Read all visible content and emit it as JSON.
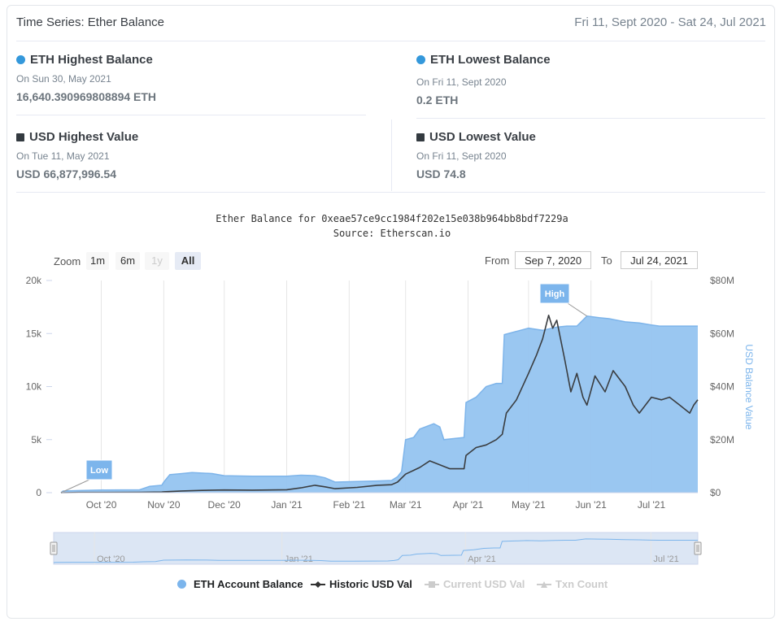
{
  "header": {
    "title": "Time Series: Ether Balance",
    "range": "Fri 11, Sept 2020 - Sat 24, Jul 2021"
  },
  "stats": {
    "eth_high": {
      "title": "ETH Highest Balance",
      "date": "On Sun 30, May 2021",
      "value": "16,640.390969808894 ETH"
    },
    "eth_low": {
      "title": "ETH Lowest Balance",
      "date": "On Fri 11, Sept 2020",
      "value": "0.2 ETH"
    },
    "usd_high": {
      "title": "USD Highest Value",
      "date": "On Tue 11, May 2021",
      "value": "USD 66,877,996.54"
    },
    "usd_low": {
      "title": "USD Lowest Value",
      "date": "On Fri 11, Sept 2020",
      "value": "USD 74.8"
    }
  },
  "colors": {
    "eth_area": "#95c4f0",
    "eth_line": "#7db4ea",
    "usd_line": "#3a3d40",
    "accent": "#3498db",
    "flag": "#7cb5ec"
  },
  "controls": {
    "zoom_label": "Zoom",
    "zoom_options": [
      "1m",
      "6m",
      "1y",
      "All"
    ],
    "zoom_selected": "All",
    "from_label": "From",
    "from_value": "Sep 7, 2020",
    "to_label": "To",
    "to_value": "Jul 24, 2021"
  },
  "chart_data": {
    "type": "area",
    "title": "Ether Balance for 0xeae57ce9cc1984f202e15e038b964bb8bdf7229a",
    "subtitle": "Source: Etherscan.io",
    "x_ticks": [
      "Oct '20",
      "Nov '20",
      "Dec '20",
      "Jan '21",
      "Feb '21",
      "Mar '21",
      "Apr '21",
      "May '21",
      "Jun '21",
      "Jul '21"
    ],
    "x_range": [
      "2020-09-11",
      "2021-07-24"
    ],
    "y_left": {
      "ticks": [
        "0",
        "5k",
        "10k",
        "15k",
        "20k"
      ],
      "range": [
        0,
        20000
      ]
    },
    "y_right": {
      "label": "USD Balance Value",
      "ticks": [
        "$0",
        "$20M",
        "$40M",
        "$60M",
        "$80M"
      ],
      "range": [
        0,
        80000000
      ]
    },
    "flags": [
      {
        "label": "Low",
        "date": "2020-09-11"
      },
      {
        "label": "High",
        "date": "2021-05-30"
      }
    ],
    "navigator_ticks": [
      "Oct '20",
      "Jan '21",
      "Apr '21",
      "Jul '21"
    ],
    "series": [
      {
        "name": "ETH Account Balance",
        "axis": "left",
        "type": "area",
        "points": [
          [
            "2020-09-11",
            0
          ],
          [
            "2020-09-12",
            150
          ],
          [
            "2020-09-20",
            200
          ],
          [
            "2020-10-01",
            250
          ],
          [
            "2020-10-20",
            270
          ],
          [
            "2020-10-25",
            600
          ],
          [
            "2020-10-31",
            700
          ],
          [
            "2020-11-01",
            1000
          ],
          [
            "2020-11-04",
            1700
          ],
          [
            "2020-11-10",
            1800
          ],
          [
            "2020-11-15",
            1900
          ],
          [
            "2020-11-25",
            1800
          ],
          [
            "2020-12-01",
            1600
          ],
          [
            "2020-12-15",
            1550
          ],
          [
            "2021-01-01",
            1550
          ],
          [
            "2021-01-08",
            1650
          ],
          [
            "2021-01-15",
            1600
          ],
          [
            "2021-01-20",
            1400
          ],
          [
            "2021-01-25",
            1000
          ],
          [
            "2021-02-05",
            1050
          ],
          [
            "2021-02-15",
            1100
          ],
          [
            "2021-02-22",
            1150
          ],
          [
            "2021-02-25",
            1500
          ],
          [
            "2021-02-27",
            2000
          ],
          [
            "2021-03-01",
            5000
          ],
          [
            "2021-03-05",
            5200
          ],
          [
            "2021-03-08",
            6000
          ],
          [
            "2021-03-15",
            6500
          ],
          [
            "2021-03-18",
            6200
          ],
          [
            "2021-03-20",
            5000
          ],
          [
            "2021-03-30",
            5200
          ],
          [
            "2021-03-31",
            8500
          ],
          [
            "2021-04-05",
            9000
          ],
          [
            "2021-04-10",
            10000
          ],
          [
            "2021-04-15",
            10300
          ],
          [
            "2021-04-18",
            10300
          ],
          [
            "2021-04-19",
            14900
          ],
          [
            "2021-04-25",
            15200
          ],
          [
            "2021-05-01",
            15500
          ],
          [
            "2021-05-08",
            15300
          ],
          [
            "2021-05-15",
            15600
          ],
          [
            "2021-05-20",
            15700
          ],
          [
            "2021-05-25",
            15700
          ],
          [
            "2021-05-30",
            16640
          ],
          [
            "2021-06-05",
            16500
          ],
          [
            "2021-06-10",
            16400
          ],
          [
            "2021-06-18",
            16100
          ],
          [
            "2021-06-25",
            16000
          ],
          [
            "2021-07-01",
            15800
          ],
          [
            "2021-07-05",
            15700
          ],
          [
            "2021-07-24",
            15700
          ]
        ]
      },
      {
        "name": "Historic USD Val",
        "axis": "right",
        "type": "line",
        "points": [
          [
            "2020-09-11",
            0
          ],
          [
            "2020-09-20",
            80000
          ],
          [
            "2020-10-01",
            100000
          ],
          [
            "2020-10-20",
            120000
          ],
          [
            "2020-10-31",
            250000
          ],
          [
            "2020-11-01",
            350000
          ],
          [
            "2020-11-10",
            650000
          ],
          [
            "2020-11-20",
            850000
          ],
          [
            "2020-12-01",
            1000000
          ],
          [
            "2020-12-15",
            950000
          ],
          [
            "2021-01-01",
            1100000
          ],
          [
            "2021-01-08",
            1800000
          ],
          [
            "2021-01-15",
            2800000
          ],
          [
            "2021-01-20",
            2200000
          ],
          [
            "2021-01-25",
            1500000
          ],
          [
            "2021-02-05",
            2000000
          ],
          [
            "2021-02-15",
            2800000
          ],
          [
            "2021-02-22",
            3000000
          ],
          [
            "2021-02-25",
            4000000
          ],
          [
            "2021-03-01",
            7000000
          ],
          [
            "2021-03-08",
            9500000
          ],
          [
            "2021-03-13",
            12000000
          ],
          [
            "2021-03-18",
            10500000
          ],
          [
            "2021-03-23",
            9000000
          ],
          [
            "2021-03-30",
            9000000
          ],
          [
            "2021-03-31",
            14000000
          ],
          [
            "2021-04-05",
            17000000
          ],
          [
            "2021-04-10",
            18000000
          ],
          [
            "2021-04-15",
            20000000
          ],
          [
            "2021-04-18",
            22000000
          ],
          [
            "2021-04-20",
            30000000
          ],
          [
            "2021-04-25",
            35000000
          ],
          [
            "2021-05-01",
            45000000
          ],
          [
            "2021-05-05",
            52000000
          ],
          [
            "2021-05-08",
            58000000
          ],
          [
            "2021-05-11",
            66878000
          ],
          [
            "2021-05-13",
            62000000
          ],
          [
            "2021-05-15",
            65000000
          ],
          [
            "2021-05-19",
            50000000
          ],
          [
            "2021-05-22",
            38000000
          ],
          [
            "2021-05-25",
            45000000
          ],
          [
            "2021-05-28",
            36000000
          ],
          [
            "2021-05-30",
            33000000
          ],
          [
            "2021-06-03",
            44000000
          ],
          [
            "2021-06-08",
            38000000
          ],
          [
            "2021-06-12",
            46000000
          ],
          [
            "2021-06-18",
            40000000
          ],
          [
            "2021-06-22",
            33000000
          ],
          [
            "2021-06-25",
            30000000
          ],
          [
            "2021-07-01",
            36000000
          ],
          [
            "2021-07-06",
            35000000
          ],
          [
            "2021-07-10",
            36000000
          ],
          [
            "2021-07-15",
            33000000
          ],
          [
            "2021-07-20",
            30000000
          ],
          [
            "2021-07-22",
            33000000
          ],
          [
            "2021-07-24",
            35000000
          ]
        ]
      }
    ],
    "legend": [
      {
        "name": "ETH Account Balance",
        "active": true,
        "marker": "circle"
      },
      {
        "name": "Historic USD Val",
        "active": true,
        "marker": "line-diamond"
      },
      {
        "name": "Current USD Val",
        "active": false,
        "marker": "line-square"
      },
      {
        "name": "Txn Count",
        "active": false,
        "marker": "line-triangle"
      }
    ]
  }
}
